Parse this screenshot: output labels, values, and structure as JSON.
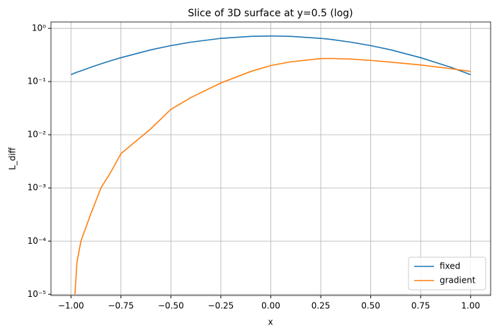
{
  "chart_data": {
    "type": "line",
    "title": "Slice of 3D surface at y=0.5 (log)",
    "x_label": "x",
    "y_label": "L_diff",
    "x": [
      -1,
      -0.98,
      -0.97,
      -0.95,
      -0.9,
      -0.85,
      -0.8,
      -0.75,
      -0.6,
      -0.5,
      -0.4,
      -0.25,
      -0.1,
      0,
      0.1,
      0.25,
      0.3,
      0.4,
      0.5,
      0.6,
      0.75,
      0.9,
      1
    ],
    "series": [
      {
        "name": "fixed",
        "color": "#1f77b4",
        "values": [
          0.135,
          0.145,
          0.15,
          0.159,
          0.186,
          0.215,
          0.247,
          0.281,
          0.395,
          0.474,
          0.551,
          0.649,
          0.708,
          0.72,
          0.708,
          0.649,
          0.622,
          0.551,
          0.474,
          0.395,
          0.281,
          0.186,
          0.135
        ]
      },
      {
        "name": "gradient",
        "color": "#ff7f0e",
        "values": [
          null,
          1e-05,
          4e-05,
          0.0001,
          0.00033,
          0.001,
          0.002,
          0.0044,
          0.013,
          0.03,
          0.05,
          0.094,
          0.155,
          0.2,
          0.235,
          0.27,
          0.272,
          0.265,
          0.25,
          0.232,
          0.205,
          0.175,
          0.155
        ]
      }
    ],
    "xlim": [
      -1.1,
      1.1
    ],
    "xticks": [
      {
        "value": -1,
        "label": "−1.00"
      },
      {
        "value": -0.75,
        "label": "−0.75"
      },
      {
        "value": -0.5,
        "label": "−0.50"
      },
      {
        "value": -0.25,
        "label": "−0.25"
      },
      {
        "value": 0,
        "label": "0.00"
      },
      0.25,
      {
        "value": 0.5,
        "label": "0.50"
      },
      0.75,
      {
        "value": 1,
        "label": "1.00"
      }
    ],
    "ylim": [
      9.5e-06,
      1.32
    ],
    "yticks": [
      {
        "value": 1e-05,
        "label": "10⁻⁵"
      },
      {
        "value": 0.0001,
        "label": "10⁻⁴"
      },
      {
        "value": 0.001,
        "label": "10⁻³"
      },
      {
        "value": 0.01,
        "label": "10⁻²"
      },
      {
        "value": 0.1,
        "label": "10⁻¹"
      },
      {
        "value": 1,
        "label": "10⁰"
      }
    ],
    "yscale": "log",
    "grid": true,
    "legend": "lower right"
  }
}
